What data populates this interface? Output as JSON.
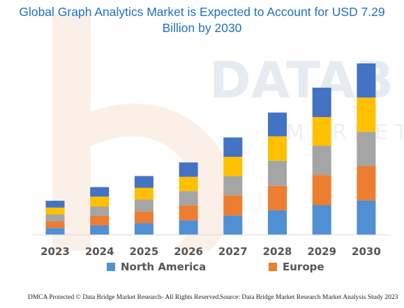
{
  "title_line1": "Global Graph Analytics Market is Expected to Account for USD 7.29",
  "title_line2": "Billion by 2030",
  "watermark": {
    "text": "DATAB",
    "subtext": "MARKET"
  },
  "footer": {
    "left": "DMCA Protected © Data Bridge Market Research- All Rights Reserved.",
    "right": "Source: Data Bridge Market Research Market Analysis Study 2023"
  },
  "chart_data": {
    "type": "bar",
    "stacked": true,
    "title": "Global Graph Analytics Market is Expected to Account for USD 7.29 Billion by 2030",
    "categories": [
      "2023",
      "2024",
      "2025",
      "2026",
      "2027",
      "2028",
      "2029",
      "2030"
    ],
    "ylim": [
      0,
      7.29
    ],
    "grid": false,
    "legend_position": "bottom",
    "series": [
      {
        "name": "North America",
        "color": "#4f8fd4",
        "values": [
          0.29,
          0.4,
          0.5,
          0.61,
          0.82,
          1.04,
          1.26,
          1.46
        ]
      },
      {
        "name": "Europe",
        "color": "#ed7d31",
        "values": [
          0.29,
          0.4,
          0.5,
          0.64,
          0.86,
          1.04,
          1.28,
          1.46
        ]
      },
      {
        "name": "",
        "color": "#a5a5a5",
        "values": [
          0.29,
          0.4,
          0.5,
          0.61,
          0.82,
          1.07,
          1.25,
          1.46
        ]
      },
      {
        "name": "",
        "color": "#ffc000",
        "values": [
          0.29,
          0.43,
          0.5,
          0.61,
          0.82,
          1.04,
          1.22,
          1.46
        ]
      },
      {
        "name": "",
        "color": "#4472c4",
        "values": [
          0.29,
          0.4,
          0.5,
          0.61,
          0.82,
          1.01,
          1.25,
          1.45
        ]
      }
    ],
    "colors": {
      "title": "#1f6fc5",
      "axis_labels": "#555555"
    }
  }
}
